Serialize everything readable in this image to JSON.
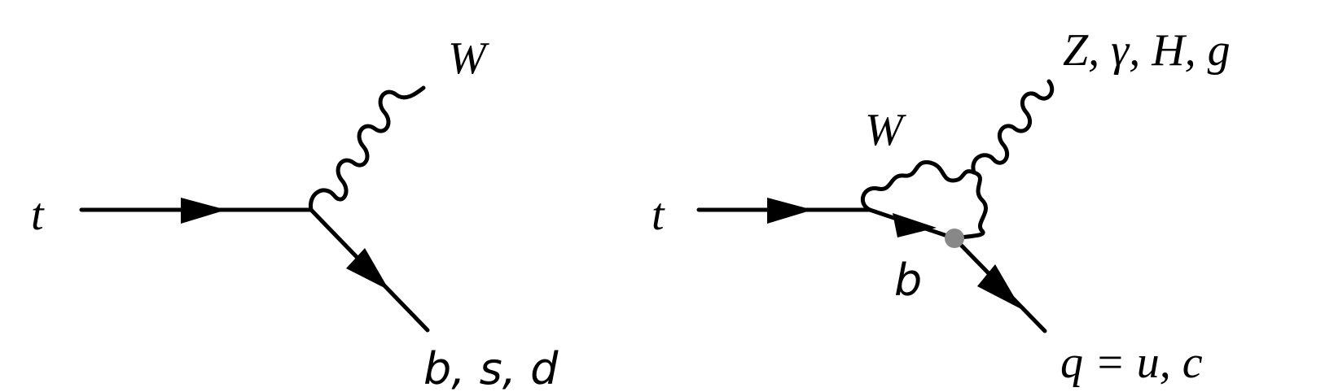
{
  "diagrams": [
    {
      "incoming_label": "t",
      "boson_label": "W",
      "outgoing_label": "b, s, d"
    },
    {
      "incoming_label": "t",
      "loop_boson_label": "W",
      "loop_quark_label": "b",
      "emitted_label": "Z, γ, H, g",
      "outgoing_label": "q = u, c"
    }
  ],
  "colors": {
    "line": "#000000",
    "vertex_blob": "#888888"
  }
}
